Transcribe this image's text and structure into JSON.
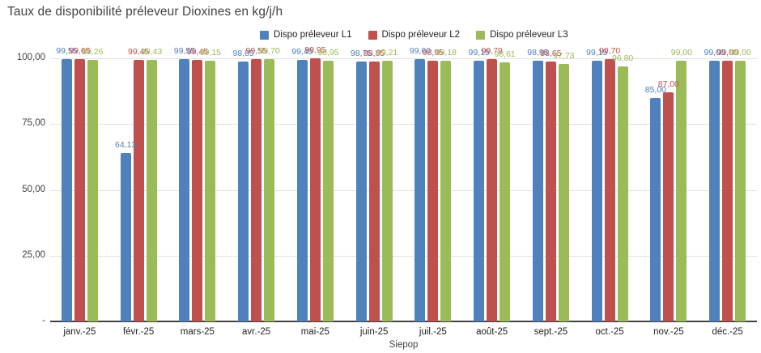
{
  "chart_data": {
    "type": "bar",
    "title": "Taux de disponibilité préleveur Dioxines en kg/j/h",
    "xlabel": "Siepop",
    "ylabel": "",
    "ylim": [
      0,
      100
    ],
    "grid": true,
    "legend_position": "top-right",
    "y_ticks": [
      {
        "value": 100,
        "label": "100,00"
      },
      {
        "value": 75,
        "label": "75,00"
      },
      {
        "value": 50,
        "label": "50,00"
      },
      {
        "value": 25,
        "label": "25,00"
      },
      {
        "value": 0,
        "label": "-"
      }
    ],
    "categories": [
      "janv.-25",
      "févr.-25",
      "mars-25",
      "avr.-25",
      "mai-25",
      "juin-25",
      "juil.-25",
      "août-25",
      "sept.-25",
      "oct.-25",
      "nov.-25",
      "déc.-25"
    ],
    "series": [
      {
        "name": "Dispo préleveur L1",
        "color": "#4F81BD",
        "values": [
          99.55,
          64.13,
          99.55,
          98.85,
          99.45,
          98.75,
          99.6,
          99.15,
          98.95,
          99.15,
          85.0,
          99.0
        ]
      },
      {
        "name": "Dispo préleveur L2",
        "color": "#C0504D",
        "values": [
          99.65,
          99.45,
          99.45,
          99.55,
          99.95,
          98.85,
          98.95,
          99.79,
          98.65,
          99.7,
          87.0,
          99.0
        ]
      },
      {
        "name": "Dispo préleveur L3",
        "color": "#9BBB59",
        "values": [
          99.26,
          99.43,
          99.15,
          99.7,
          98.95,
          99.21,
          99.18,
          98.61,
          97.73,
          96.8,
          99.0,
          99.0
        ]
      }
    ],
    "value_label_decimals": 2,
    "value_label_decimal_separator": ","
  },
  "colors": {
    "background": "#ffffff",
    "title_text": "#424242",
    "axis_text": "#222222",
    "y_tick_text": "#404040",
    "gridline": "#e2e2e2",
    "baseline": "#424242",
    "series_blue": "#4F81BD",
    "series_red": "#C0504D",
    "series_green": "#9BBB59"
  }
}
